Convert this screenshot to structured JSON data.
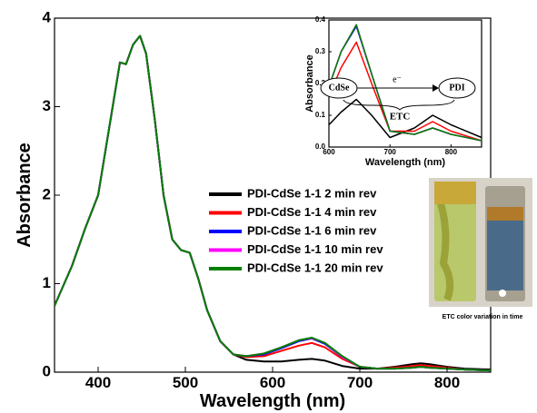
{
  "chart_data": [
    {
      "type": "line",
      "xlabel": "Wavelength (nm)",
      "ylabel": "Absorbance",
      "x": [
        350,
        370,
        385,
        400,
        415,
        425,
        432,
        440,
        448,
        455,
        465,
        475,
        485,
        495,
        505,
        515,
        525,
        540,
        555,
        570,
        590,
        610,
        630,
        645,
        660,
        680,
        700,
        720,
        740,
        760,
        770,
        780,
        800,
        820,
        850
      ],
      "xlim": [
        350,
        850
      ],
      "xticks": [
        400,
        500,
        600,
        700,
        800
      ],
      "ylim": [
        0,
        4
      ],
      "yticks": [
        0,
        1,
        2,
        3,
        4
      ],
      "legend": "right",
      "series": [
        {
          "name": "PDI-CdSe 1-1 2 min rev",
          "color": "#000000",
          "values": [
            0.75,
            1.2,
            1.62,
            2.0,
            2.9,
            3.5,
            3.48,
            3.7,
            3.8,
            3.6,
            2.85,
            2.0,
            1.5,
            1.38,
            1.35,
            1.05,
            0.7,
            0.35,
            0.2,
            0.14,
            0.12,
            0.12,
            0.14,
            0.15,
            0.13,
            0.07,
            0.04,
            0.04,
            0.06,
            0.09,
            0.1,
            0.09,
            0.06,
            0.04,
            0.03
          ]
        },
        {
          "name": "PDI-CdSe 1-1 4 min rev",
          "color": "#ff0000",
          "values": [
            0.75,
            1.2,
            1.62,
            2.0,
            2.9,
            3.5,
            3.48,
            3.7,
            3.8,
            3.6,
            2.85,
            2.0,
            1.5,
            1.38,
            1.35,
            1.05,
            0.7,
            0.35,
            0.2,
            0.17,
            0.18,
            0.24,
            0.3,
            0.33,
            0.28,
            0.15,
            0.06,
            0.04,
            0.05,
            0.07,
            0.08,
            0.07,
            0.05,
            0.03,
            0.02
          ]
        },
        {
          "name": "PDI-CdSe 1-1 6 min rev",
          "color": "#0000ff",
          "values": [
            0.75,
            1.2,
            1.62,
            2.0,
            2.9,
            3.5,
            3.48,
            3.7,
            3.8,
            3.6,
            2.85,
            2.0,
            1.5,
            1.38,
            1.35,
            1.05,
            0.7,
            0.35,
            0.2,
            0.18,
            0.2,
            0.27,
            0.35,
            0.38,
            0.32,
            0.17,
            0.06,
            0.04,
            0.04,
            0.05,
            0.06,
            0.05,
            0.04,
            0.03,
            0.02
          ]
        },
        {
          "name": "PDI-CdSe 1-1 10 min rev",
          "color": "#ff00ff",
          "values": [
            0.75,
            1.2,
            1.62,
            2.0,
            2.9,
            3.5,
            3.48,
            3.7,
            3.8,
            3.6,
            2.85,
            2.0,
            1.5,
            1.38,
            1.35,
            1.05,
            0.7,
            0.35,
            0.2,
            0.18,
            0.21,
            0.28,
            0.36,
            0.385,
            0.33,
            0.17,
            0.06,
            0.04,
            0.04,
            0.05,
            0.06,
            0.05,
            0.04,
            0.03,
            0.02
          ]
        },
        {
          "name": "PDI-CdSe 1-1 20 min rev",
          "color": "#008000",
          "values": [
            0.75,
            1.2,
            1.62,
            2.0,
            2.9,
            3.5,
            3.48,
            3.7,
            3.8,
            3.6,
            2.85,
            2.0,
            1.5,
            1.38,
            1.35,
            1.05,
            0.7,
            0.35,
            0.2,
            0.18,
            0.21,
            0.28,
            0.36,
            0.39,
            0.33,
            0.18,
            0.06,
            0.04,
            0.04,
            0.05,
            0.06,
            0.05,
            0.04,
            0.03,
            0.02
          ]
        }
      ]
    },
    {
      "type": "line",
      "xlabel": "Wavelength (nm)",
      "ylabel": "Absorbance",
      "x": [
        600,
        620,
        645,
        670,
        700,
        740,
        770,
        800,
        850
      ],
      "xlim": [
        600,
        850
      ],
      "xticks": [
        600,
        700,
        800
      ],
      "ylim": [
        0,
        0.4
      ],
      "yticks": [
        {
          "value": 0,
          "label": "0.0"
        },
        0.1,
        0.2,
        0.3,
        0.4
      ],
      "annotations": [
        "CdSe",
        "e⁻",
        "PDI",
        "ETC"
      ],
      "series": [
        {
          "color": "#000000",
          "values": [
            0.07,
            0.11,
            0.15,
            0.1,
            0.03,
            0.06,
            0.1,
            0.07,
            0.03
          ]
        },
        {
          "color": "#ff0000",
          "values": [
            0.16,
            0.25,
            0.33,
            0.2,
            0.05,
            0.05,
            0.08,
            0.05,
            0.02
          ]
        },
        {
          "color": "#0000ff",
          "values": [
            0.19,
            0.3,
            0.38,
            0.23,
            0.05,
            0.04,
            0.06,
            0.04,
            0.02
          ]
        },
        {
          "color": "#ff00ff",
          "values": [
            0.19,
            0.3,
            0.385,
            0.23,
            0.05,
            0.04,
            0.06,
            0.04,
            0.02
          ]
        },
        {
          "color": "#008000",
          "values": [
            0.19,
            0.3,
            0.385,
            0.23,
            0.05,
            0.04,
            0.06,
            0.04,
            0.02
          ]
        }
      ]
    }
  ],
  "photo": {
    "caption": "ETC color variation in time"
  }
}
